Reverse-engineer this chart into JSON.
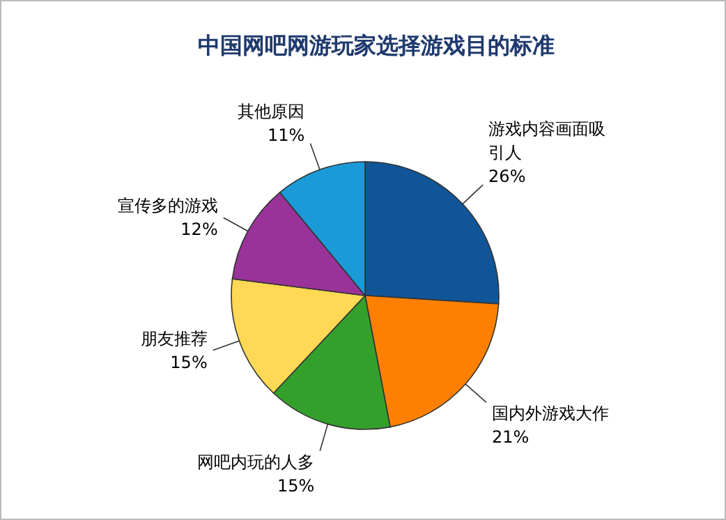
{
  "chart_data": {
    "type": "pie",
    "title": "中国网吧网游玩家选择游戏目的标准",
    "categories": [
      "游戏内容画面吸引人",
      "国内外游戏大作",
      "网吧内玩的人多",
      "朋友推荐",
      "宣传多的游戏",
      "其他原因"
    ],
    "values": [
      26,
      21,
      15,
      15,
      12,
      11
    ],
    "value_labels": [
      "26%",
      "21%",
      "15%",
      "15%",
      "12%",
      "11%"
    ],
    "colors": [
      "#0f5597",
      "#ff8000",
      "#33a02c",
      "#ffd855",
      "#993399",
      "#1a9ad6"
    ]
  }
}
